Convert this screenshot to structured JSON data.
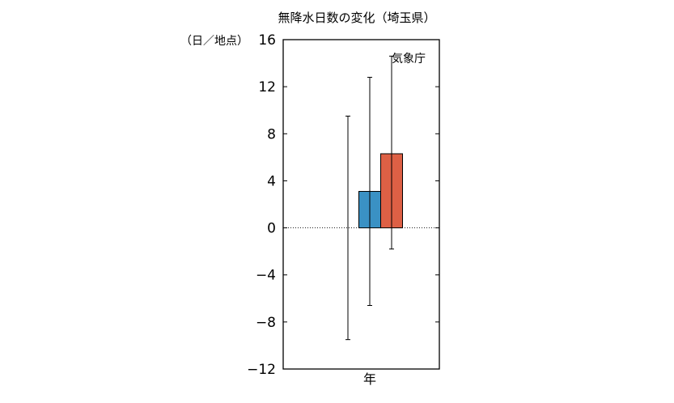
{
  "chart_data": {
    "type": "bar",
    "title": "無降水日数の変化（埼玉県）",
    "ylabel": "（日／地点）",
    "annotation": "気象庁",
    "categories": [
      "年"
    ],
    "ylim": [
      -12,
      16
    ],
    "yticks": [
      "16",
      "12",
      "8",
      "4",
      "0",
      "−4",
      "−8",
      "−12"
    ],
    "yticks_values": [
      16,
      12,
      8,
      4,
      0,
      -4,
      -8,
      -12
    ],
    "grid": false,
    "zero_line": "dotted",
    "series": [
      {
        "values": [
          0
        ],
        "error_low": [
          -9.5
        ],
        "error_high": [
          9.5
        ],
        "color": "#ffffff"
      },
      {
        "values": [
          3.1
        ],
        "error_low": [
          -6.6
        ],
        "error_high": [
          12.8
        ],
        "color": "#3a91c4"
      },
      {
        "values": [
          6.3
        ],
        "error_low": [
          -1.8
        ],
        "error_high": [
          14.6
        ],
        "color": "#dd6045"
      }
    ]
  }
}
